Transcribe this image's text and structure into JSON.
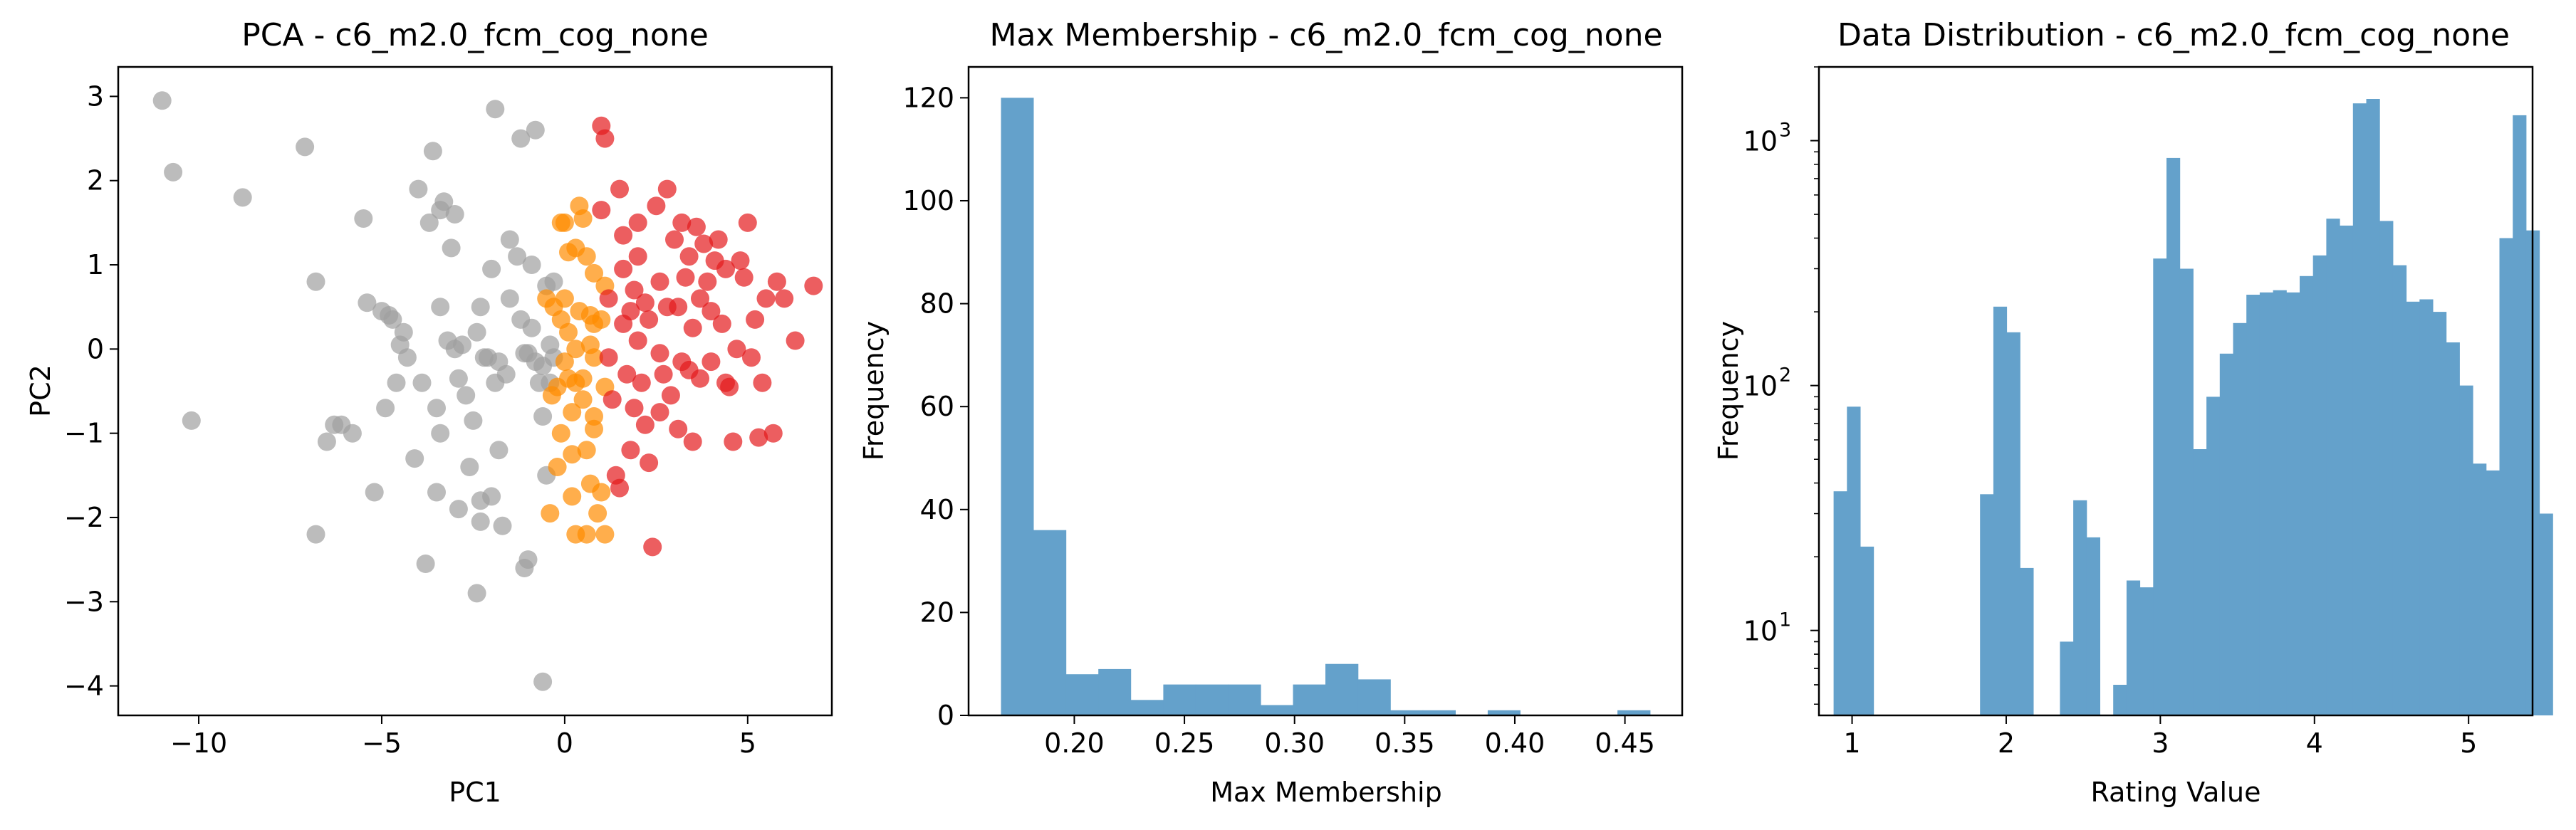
{
  "chart_data": [
    {
      "type": "scatter",
      "title": "PCA - c6_m2.0_fcm_cog_none",
      "xlabel": "PC1",
      "ylabel": "PC2",
      "xlim": [
        -12.2,
        7.3
      ],
      "ylim": [
        -4.35,
        3.35
      ],
      "xticks": [
        -10,
        -5,
        0,
        5
      ],
      "xtick_labels": [
        "−10",
        "−5",
        "0",
        "5"
      ],
      "yticks": [
        -4,
        -3,
        -2,
        -1,
        0,
        1,
        2,
        3
      ],
      "ytick_labels": [
        "−4",
        "−3",
        "−2",
        "−1",
        "0",
        "1",
        "2",
        "3"
      ],
      "grid": false,
      "colors": {
        "gray": "#a0a0a0",
        "orange": "#ff8c00",
        "red": "#e41a1c"
      },
      "series": [
        {
          "color": "#a0a0a0",
          "points": [
            [
              -11,
              2.95
            ],
            [
              -10.7,
              2.1
            ],
            [
              -10.2,
              -0.85
            ],
            [
              -8.8,
              1.8
            ],
            [
              -7.1,
              2.4
            ],
            [
              -6.8,
              0.8
            ],
            [
              -6.8,
              -2.2
            ],
            [
              -6.5,
              -1.1
            ],
            [
              -6.3,
              -0.9
            ],
            [
              -6.1,
              -0.9
            ],
            [
              -5.8,
              -1
            ],
            [
              -5.5,
              1.55
            ],
            [
              -5.4,
              0.55
            ],
            [
              -5.2,
              -1.7
            ],
            [
              -5,
              0.45
            ],
            [
              -4.9,
              -0.7
            ],
            [
              -4.8,
              0.4
            ],
            [
              -4.7,
              0.35
            ],
            [
              -4.6,
              -0.4
            ],
            [
              -4.5,
              0.05
            ],
            [
              -4.4,
              0.2
            ],
            [
              -4.3,
              -0.1
            ],
            [
              -4.1,
              -1.3
            ],
            [
              -4,
              1.9
            ],
            [
              -3.9,
              -0.4
            ],
            [
              -3.8,
              -2.55
            ],
            [
              -3.7,
              1.5
            ],
            [
              -3.6,
              2.35
            ],
            [
              -3.5,
              -0.7
            ],
            [
              -3.5,
              -1.7
            ],
            [
              -3.4,
              1.65
            ],
            [
              -3.4,
              0.5
            ],
            [
              -3.4,
              -1
            ],
            [
              -3.3,
              1.75
            ],
            [
              -3.2,
              0.1
            ],
            [
              -3.1,
              1.2
            ],
            [
              -3,
              1.6
            ],
            [
              -3,
              0
            ],
            [
              -2.9,
              -0.35
            ],
            [
              -2.9,
              -1.9
            ],
            [
              -2.8,
              0.05
            ],
            [
              -2.7,
              -0.55
            ],
            [
              -2.6,
              -1.4
            ],
            [
              -2.5,
              -0.85
            ],
            [
              -2.4,
              0.2
            ],
            [
              -2.4,
              -2.9
            ],
            [
              -2.3,
              0.5
            ],
            [
              -2.3,
              -1.8
            ],
            [
              -2.3,
              -2.05
            ],
            [
              -2.2,
              -0.1
            ],
            [
              -2.1,
              -0.1
            ],
            [
              -2,
              0.95
            ],
            [
              -2,
              -1.75
            ],
            [
              -1.9,
              2.85
            ],
            [
              -1.9,
              -0.4
            ],
            [
              -1.8,
              -0.15
            ],
            [
              -1.8,
              -1.2
            ],
            [
              -1.7,
              -2.1
            ],
            [
              -1.6,
              -0.3
            ],
            [
              -1.5,
              0.6
            ],
            [
              -1.5,
              1.3
            ],
            [
              -1.3,
              1.1
            ],
            [
              -1.2,
              0.35
            ],
            [
              -1.2,
              2.5
            ],
            [
              -1.1,
              -0.05
            ],
            [
              -1.1,
              -2.6
            ],
            [
              -1,
              -0.05
            ],
            [
              -1,
              -2.5
            ],
            [
              -0.9,
              1
            ],
            [
              -0.9,
              0.25
            ],
            [
              -0.8,
              2.6
            ],
            [
              -0.8,
              -0.15
            ],
            [
              -0.7,
              -0.4
            ],
            [
              -0.6,
              -0.2
            ],
            [
              -0.6,
              -0.8
            ],
            [
              -0.6,
              -3.95
            ],
            [
              -0.5,
              0.75
            ],
            [
              -0.5,
              -1.5
            ],
            [
              -0.4,
              -0.4
            ],
            [
              -0.4,
              0.05
            ],
            [
              -0.3,
              -0.1
            ],
            [
              -0.3,
              0.8
            ]
          ]
        },
        {
          "color": "#ff8c00",
          "points": [
            [
              -0.5,
              0.6
            ],
            [
              -0.4,
              -1.95
            ],
            [
              -0.35,
              -0.55
            ],
            [
              -0.3,
              0.5
            ],
            [
              -0.2,
              -1.4
            ],
            [
              -0.2,
              -0.45
            ],
            [
              -0.1,
              1.5
            ],
            [
              -0.1,
              -1
            ],
            [
              -0.1,
              0.35
            ],
            [
              0,
              1.5
            ],
            [
              0,
              0.6
            ],
            [
              0,
              -0.15
            ],
            [
              0.1,
              1.15
            ],
            [
              0.1,
              0.2
            ],
            [
              0.1,
              -0.35
            ],
            [
              0.2,
              -0.75
            ],
            [
              0.2,
              -1.25
            ],
            [
              0.2,
              -1.75
            ],
            [
              0.3,
              1.2
            ],
            [
              0.3,
              0
            ],
            [
              0.3,
              -0.4
            ],
            [
              0.4,
              1.7
            ],
            [
              0.4,
              0.45
            ],
            [
              0.5,
              1.55
            ],
            [
              0.5,
              -0.35
            ],
            [
              0.5,
              -0.6
            ],
            [
              0.6,
              -1.2
            ],
            [
              0.6,
              1.1
            ],
            [
              0.7,
              0.05
            ],
            [
              0.7,
              -1.6
            ],
            [
              0.8,
              0.9
            ],
            [
              0.8,
              -0.1
            ],
            [
              0.8,
              -0.95
            ],
            [
              0.9,
              -1.95
            ],
            [
              1,
              0.35
            ],
            [
              1,
              -1.7
            ],
            [
              1.1,
              0.75
            ],
            [
              1.1,
              -0.45
            ],
            [
              1.1,
              -2.2
            ],
            [
              0.3,
              -2.2
            ],
            [
              0.6,
              -2.2
            ],
            [
              0.8,
              0.3
            ],
            [
              0.8,
              -0.8
            ],
            [
              0.7,
              0.4
            ]
          ]
        },
        {
          "color": "#e41a1c",
          "points": [
            [
              1,
              2.65
            ],
            [
              1.1,
              2.5
            ],
            [
              1,
              1.65
            ],
            [
              1.2,
              0.6
            ],
            [
              1.2,
              -0.1
            ],
            [
              1.3,
              -0.6
            ],
            [
              1.4,
              -1.5
            ],
            [
              1.5,
              1.9
            ],
            [
              1.6,
              1.35
            ],
            [
              1.6,
              0.95
            ],
            [
              1.6,
              0.3
            ],
            [
              1.7,
              -0.3
            ],
            [
              1.8,
              -1.2
            ],
            [
              1.8,
              0.45
            ],
            [
              1.9,
              0.7
            ],
            [
              2,
              1.5
            ],
            [
              2,
              1.1
            ],
            [
              2,
              0.1
            ],
            [
              2.1,
              -0.4
            ],
            [
              2.2,
              -0.9
            ],
            [
              2.3,
              0.35
            ],
            [
              2.3,
              -1.35
            ],
            [
              2.4,
              -2.35
            ],
            [
              2.5,
              1.7
            ],
            [
              2.6,
              0.8
            ],
            [
              2.6,
              -0.05
            ],
            [
              2.6,
              -0.75
            ],
            [
              2.8,
              1.9
            ],
            [
              2.8,
              0.5
            ],
            [
              2.9,
              -0.55
            ],
            [
              3,
              1.3
            ],
            [
              3.1,
              0.5
            ],
            [
              3.1,
              -0.95
            ],
            [
              3.2,
              1.5
            ],
            [
              3.2,
              -0.15
            ],
            [
              3.3,
              0.85
            ],
            [
              3.4,
              1.1
            ],
            [
              3.5,
              0.25
            ],
            [
              3.5,
              -1.1
            ],
            [
              3.6,
              1.45
            ],
            [
              3.7,
              0.6
            ],
            [
              3.7,
              -0.35
            ],
            [
              3.8,
              1.25
            ],
            [
              3.9,
              0.8
            ],
            [
              4,
              0.45
            ],
            [
              4,
              -0.15
            ],
            [
              4.1,
              1.05
            ],
            [
              4.2,
              1.3
            ],
            [
              4.3,
              0.3
            ],
            [
              4.4,
              0.95
            ],
            [
              4.5,
              -0.45
            ],
            [
              4.6,
              -1.1
            ],
            [
              4.7,
              0
            ],
            [
              4.9,
              0.85
            ],
            [
              5,
              1.5
            ],
            [
              5.2,
              0.35
            ],
            [
              5.3,
              -1.05
            ],
            [
              5.4,
              -0.4
            ],
            [
              5.5,
              0.6
            ],
            [
              5.7,
              -1
            ],
            [
              5.8,
              0.8
            ],
            [
              6,
              0.6
            ],
            [
              6.3,
              0.1
            ],
            [
              6.8,
              0.75
            ],
            [
              5.1,
              -0.1
            ],
            [
              4.8,
              1.05
            ],
            [
              3.4,
              -0.25
            ],
            [
              2.7,
              -0.3
            ],
            [
              1.9,
              -0.7
            ],
            [
              1.5,
              -1.65
            ],
            [
              2.2,
              0.55
            ],
            [
              4.4,
              -0.4
            ]
          ]
        }
      ]
    },
    {
      "type": "bar",
      "title": "Max Membership - c6_m2.0_fcm_cog_none",
      "xlabel": "Max Membership",
      "ylabel": "Frequency",
      "xlim": [
        0.152,
        0.476
      ],
      "ylim": [
        0,
        126
      ],
      "xticks": [
        0.2,
        0.25,
        0.3,
        0.35,
        0.4,
        0.45
      ],
      "xtick_labels": [
        "0.20",
        "0.25",
        "0.30",
        "0.35",
        "0.40",
        "0.45"
      ],
      "yticks": [
        0,
        20,
        40,
        60,
        80,
        100,
        120
      ],
      "ytick_labels": [
        "0",
        "20",
        "40",
        "60",
        "80",
        "100",
        "120"
      ],
      "grid": false,
      "bar_color": "#64a1cb",
      "bin_edges": [
        0.1667,
        0.1814,
        0.1962,
        0.2109,
        0.2256,
        0.2404,
        0.2551,
        0.2698,
        0.2846,
        0.2993,
        0.314,
        0.3288,
        0.3435,
        0.3582,
        0.373,
        0.3877,
        0.4024,
        0.4172,
        0.4319,
        0.4466,
        0.4614
      ],
      "values": [
        120,
        36,
        8,
        9,
        3,
        6,
        6,
        6,
        2,
        6,
        10,
        7,
        1,
        1,
        0,
        1,
        0,
        0,
        0,
        1
      ]
    },
    {
      "type": "bar",
      "title": "Data Distribution - c6_m2.0_fcm_cog_none",
      "xlabel": "Rating Value",
      "ylabel": "Frequency",
      "yscale": "log",
      "xlim": [
        0.785,
        5.415
      ],
      "ylim": [
        4.5,
        2000
      ],
      "xticks": [
        1,
        2,
        3,
        4,
        5
      ],
      "xtick_labels": [
        "1",
        "2",
        "3",
        "4",
        "5"
      ],
      "yticks": [
        10,
        100,
        1000
      ],
      "ytick_base": "10",
      "ytick_exponents": [
        "1",
        "2",
        "3"
      ],
      "grid": false,
      "bar_color": "#64a1cb",
      "bin_start": 0.88,
      "bin_width": 0.0864,
      "values": [
        37,
        82,
        22,
        0,
        0,
        0,
        0,
        0,
        0,
        0,
        0,
        36,
        210,
        165,
        18,
        0,
        0,
        9,
        34,
        24,
        0,
        6,
        16,
        15,
        330,
        850,
        300,
        55,
        90,
        135,
        180,
        235,
        240,
        245,
        240,
        280,
        340,
        480,
        450,
        1420,
        1480,
        470,
        310,
        220,
        225,
        200,
        150,
        100,
        48,
        45,
        400,
        1270,
        430,
        30
      ]
    }
  ]
}
